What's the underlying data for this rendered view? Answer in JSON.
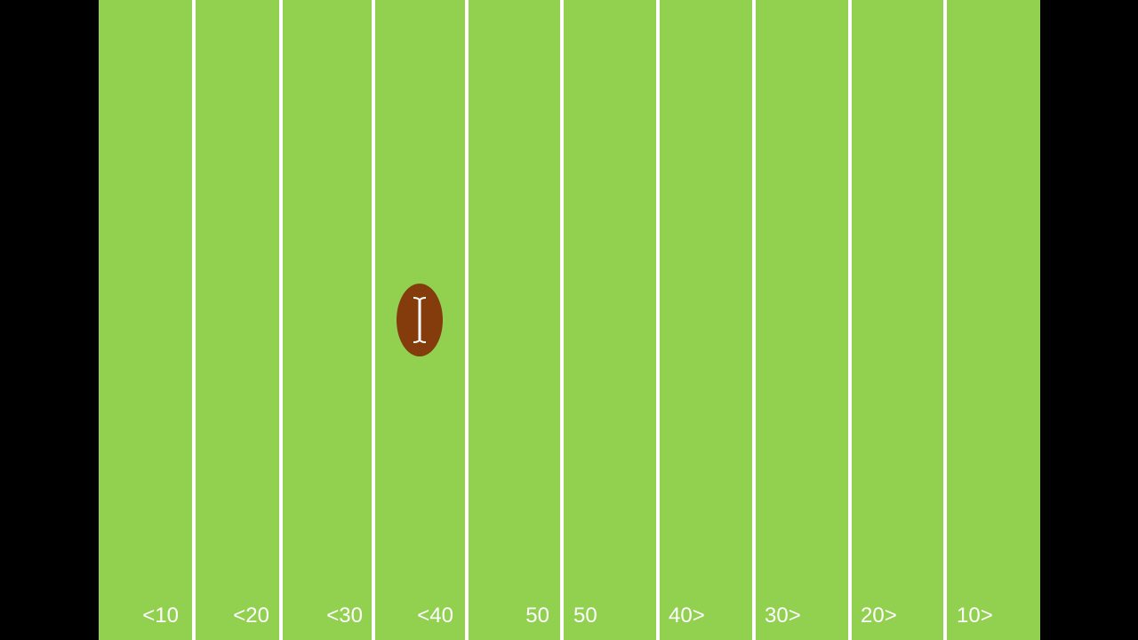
{
  "colors": {
    "background": "#000000",
    "field": "#92d050",
    "yard_line": "#ffffff",
    "football": "#843c0c",
    "label_text": "#ffffff"
  },
  "field": {
    "yard_labels": [
      "<10",
      "<20",
      "<30",
      "<40",
      "50",
      "50",
      "40>",
      "30>",
      "20>",
      "10>"
    ]
  },
  "football": {
    "icon": "text-cursor-icon"
  }
}
